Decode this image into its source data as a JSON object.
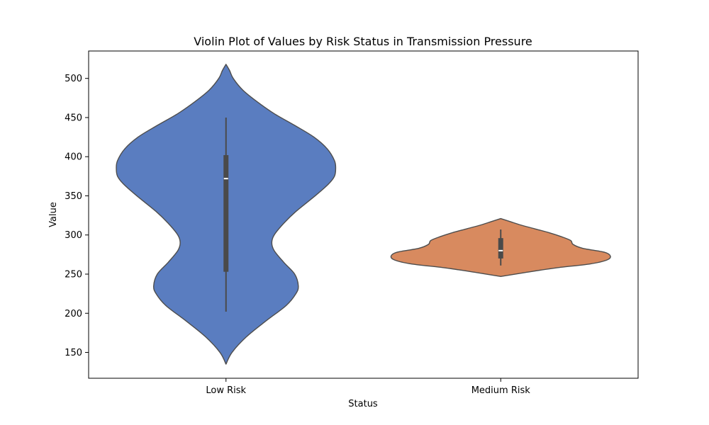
{
  "chart_data": {
    "type": "violin",
    "title": "Violin Plot of Values by Risk Status in Transmission Pressure",
    "xlabel": "Status",
    "ylabel": "Value",
    "ylim": [
      117,
      535
    ],
    "yticks": [
      150,
      200,
      250,
      300,
      350,
      400,
      450,
      500
    ],
    "yticklabels": [
      "150",
      "200",
      "250",
      "300",
      "350",
      "400",
      "450",
      "500"
    ],
    "grid": false,
    "categories": [
      "Low Risk",
      "Medium Risk"
    ],
    "violins": [
      {
        "category": "Low Risk",
        "color": "#5a7dc0",
        "whisker_low": 202,
        "q1": 253,
        "median": 372,
        "q3": 402,
        "whisker_high": 450,
        "density": [
          [
            135,
            0.0
          ],
          [
            150,
            0.05
          ],
          [
            170,
            0.17
          ],
          [
            190,
            0.33
          ],
          [
            210,
            0.5
          ],
          [
            225,
            0.58
          ],
          [
            235,
            0.6
          ],
          [
            250,
            0.57
          ],
          [
            265,
            0.48
          ],
          [
            280,
            0.4
          ],
          [
            290,
            0.38
          ],
          [
            300,
            0.4
          ],
          [
            315,
            0.48
          ],
          [
            330,
            0.58
          ],
          [
            350,
            0.74
          ],
          [
            365,
            0.85
          ],
          [
            375,
            0.9
          ],
          [
            385,
            0.91
          ],
          [
            395,
            0.9
          ],
          [
            410,
            0.84
          ],
          [
            425,
            0.73
          ],
          [
            440,
            0.57
          ],
          [
            455,
            0.4
          ],
          [
            470,
            0.26
          ],
          [
            485,
            0.14
          ],
          [
            500,
            0.06
          ],
          [
            510,
            0.03
          ],
          [
            518,
            0.0
          ]
        ]
      },
      {
        "category": "Medium Risk",
        "color": "#d88a5f",
        "whisker_low": 261,
        "q1": 270,
        "median": 280,
        "q3": 296,
        "whisker_high": 307,
        "density": [
          [
            247,
            0.0
          ],
          [
            252,
            0.2
          ],
          [
            258,
            0.46
          ],
          [
            263,
            0.74
          ],
          [
            268,
            0.88
          ],
          [
            273,
            0.91
          ],
          [
            278,
            0.86
          ],
          [
            283,
            0.68
          ],
          [
            288,
            0.6
          ],
          [
            293,
            0.58
          ],
          [
            298,
            0.5
          ],
          [
            303,
            0.4
          ],
          [
            308,
            0.28
          ],
          [
            313,
            0.16
          ],
          [
            317,
            0.08
          ],
          [
            321,
            0.0
          ]
        ]
      }
    ]
  }
}
